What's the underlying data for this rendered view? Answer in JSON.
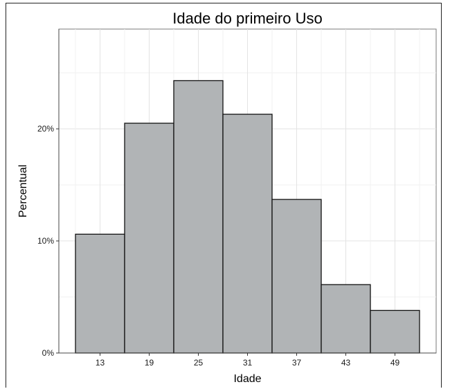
{
  "chart_data": {
    "type": "bar",
    "title": "Idade do primeiro Uso",
    "xlabel": "Idade",
    "ylabel": "Percentual",
    "categories": [
      "13",
      "19",
      "25",
      "31",
      "37",
      "43",
      "49"
    ],
    "values": [
      10.6,
      20.5,
      24.3,
      21.3,
      13.7,
      6.1,
      3.8
    ],
    "y_tick_labels": [
      "0%",
      "10%",
      "20%"
    ],
    "y_tick_values": [
      0,
      10,
      20
    ],
    "ylim": [
      0,
      28.9
    ],
    "grid": true,
    "legend": "none",
    "bar_fill": "#b1b4b6",
    "bar_stroke": "#111111"
  }
}
